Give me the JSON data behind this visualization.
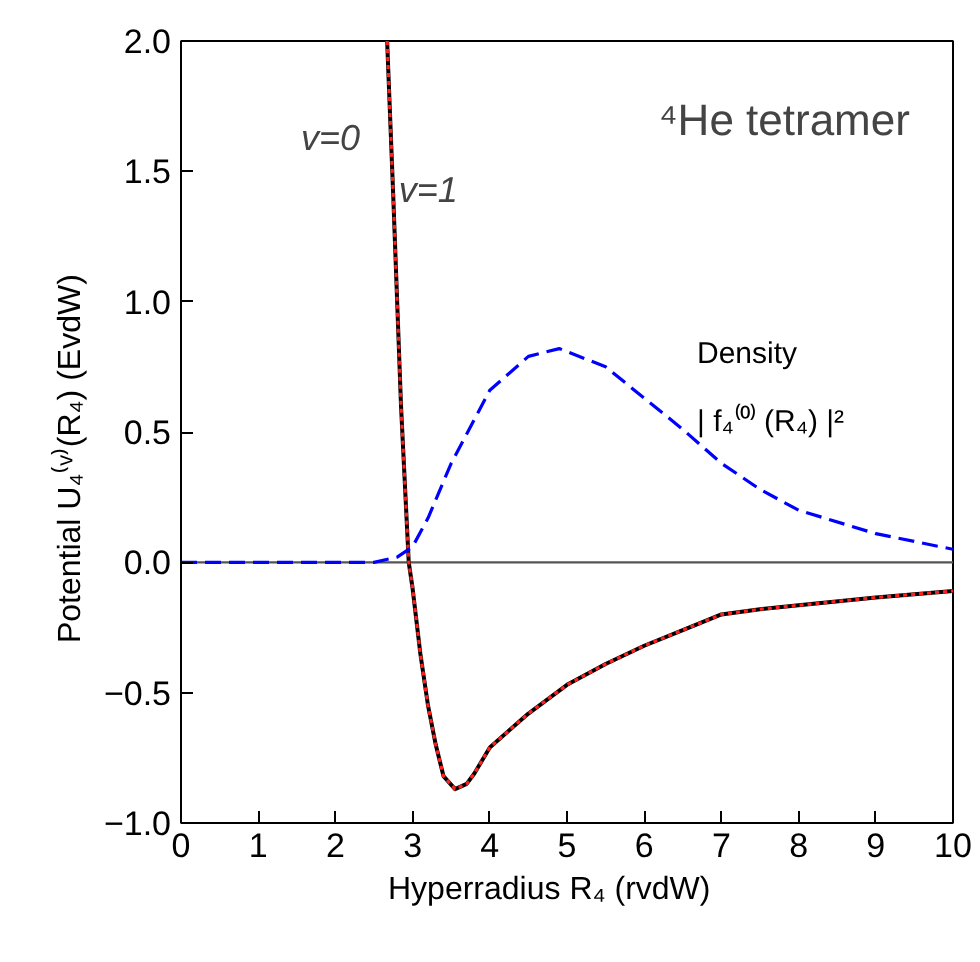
{
  "chart_data": {
    "type": "line",
    "title": "⁴He  tetramer",
    "xlabel": "Hyperradius   R₄   (rvdW)",
    "ylabel": "Potential    U₄⁽ᵛ⁾(R₄)    (EvdW)",
    "xlim": [
      0,
      10
    ],
    "ylim": [
      -1.0,
      2.0
    ],
    "xticks": [
      0,
      1,
      2,
      3,
      4,
      5,
      6,
      7,
      8,
      9,
      10
    ],
    "yticks": [
      {
        "value": -1.0,
        "label": "−1.0"
      },
      {
        "value": -0.5,
        "label": "−0.5"
      },
      {
        "value": 0,
        "label": "0.0"
      },
      {
        "value": 0.5,
        "label": "0.5"
      },
      {
        "value": 1.0,
        "label": "1.0"
      },
      {
        "value": 1.5,
        "label": "1.5"
      },
      {
        "value": 2.0,
        "label": "2.0"
      }
    ],
    "grid": false,
    "ref_lines": [
      {
        "axis": "y",
        "value": 0,
        "color": "#555555",
        "line_style": "solid"
      }
    ],
    "series": [
      {
        "name": "v=0",
        "color": "#000000",
        "line_style": "solid",
        "x": [
          2.67,
          2.75,
          2.85,
          2.9,
          2.95,
          3.0,
          3.1,
          3.2,
          3.3,
          3.4,
          3.55,
          3.7,
          3.8,
          4.0,
          4.5,
          5.0,
          5.5,
          6.0,
          6.5,
          7.0,
          7.5,
          8.0,
          9.0,
          10.0
        ],
        "values": [
          2.0,
          1.4,
          0.6,
          0.3,
          0.0,
          -0.1,
          -0.35,
          -0.55,
          -0.7,
          -0.82,
          -0.87,
          -0.85,
          -0.81,
          -0.71,
          -0.58,
          -0.47,
          -0.39,
          -0.32,
          -0.26,
          -0.2,
          -0.18,
          -0.165,
          -0.135,
          -0.11
        ]
      },
      {
        "name": "v=1",
        "color": "#ff2020",
        "line_style": "dotted",
        "x": [
          2.67,
          2.75,
          2.85,
          2.9,
          2.95,
          3.0,
          3.1,
          3.2,
          3.3,
          3.4,
          3.55,
          3.7,
          3.8,
          4.0,
          4.5,
          5.0,
          5.5,
          6.0,
          6.5,
          7.0,
          7.5,
          8.0,
          9.0,
          10.0
        ],
        "values": [
          2.0,
          1.4,
          0.6,
          0.3,
          0.0,
          -0.1,
          -0.35,
          -0.55,
          -0.7,
          -0.82,
          -0.87,
          -0.85,
          -0.81,
          -0.71,
          -0.58,
          -0.47,
          -0.39,
          -0.32,
          -0.26,
          -0.2,
          -0.18,
          -0.165,
          -0.135,
          -0.11
        ]
      },
      {
        "color": "#0000ff",
        "line_style": "dashed",
        "x": [
          0,
          1,
          2,
          2.5,
          2.8,
          3.0,
          3.2,
          3.5,
          4.0,
          4.5,
          4.9,
          5.5,
          6.0,
          6.5,
          7.0,
          7.5,
          8.0,
          9.0,
          10.0
        ],
        "values": [
          0,
          0,
          0,
          0,
          0.02,
          0.06,
          0.17,
          0.38,
          0.66,
          0.79,
          0.82,
          0.75,
          0.63,
          0.51,
          0.38,
          0.28,
          0.2,
          0.11,
          0.05
        ]
      }
    ],
    "annotations": [
      "Density",
      "| f₄⁽⁰⁾ (R₄) |²"
    ]
  }
}
